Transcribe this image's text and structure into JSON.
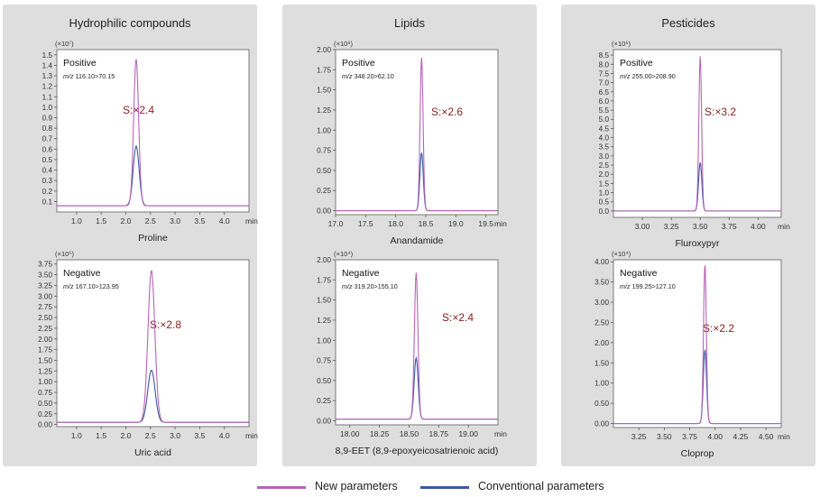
{
  "legend": {
    "new_label": "New parameters",
    "conv_label": "Conventional parameters",
    "new_color": "#b565b5",
    "conv_color": "#3a5aa6"
  },
  "panels": [
    {
      "title": "Hydrophilic compounds"
    },
    {
      "title": "Lipids"
    },
    {
      "title": "Pesticides"
    }
  ],
  "chart_data": [
    {
      "type": "line",
      "group": "Hydrophilic compounds",
      "scale_label": "(×10⁷)",
      "mode": "Positive",
      "mz_prefix": "m/z",
      "mz": "116.10>70.15",
      "compound": "Proline",
      "ratio_label": "S:×2.4",
      "xunit": "min",
      "xlim": [
        0.6,
        4.5
      ],
      "ylim": [
        0.0,
        1.55
      ],
      "xticks": [
        1.0,
        1.5,
        2.0,
        2.5,
        3.0,
        3.5,
        4.0
      ],
      "xtick_labels": [
        "1.0",
        "1.5",
        "2.0",
        "2.5",
        "3.0",
        "3.5",
        "4.0"
      ],
      "yticks": [
        0.1,
        0.2,
        0.3,
        0.4,
        0.5,
        0.6,
        0.7,
        0.8,
        0.9,
        1.0,
        1.1,
        1.2,
        1.3,
        1.4,
        1.5
      ],
      "ytick_labels": [
        "0.1",
        "0.2",
        "0.3",
        "0.4",
        "0.5",
        "0.6",
        "0.7",
        "0.8",
        "0.9",
        "1.0",
        "1.1",
        "1.2",
        "1.3",
        "1.4",
        "1.5"
      ],
      "baseline": 0.06,
      "series": [
        {
          "name": "New parameters",
          "peak_x": 2.21,
          "peak_y": 1.46,
          "width": 0.05
        },
        {
          "name": "Conventional parameters",
          "peak_x": 2.21,
          "peak_y": 0.63,
          "width": 0.06
        }
      ]
    },
    {
      "type": "line",
      "group": "Hydrophilic compounds",
      "scale_label": "(×10⁵)",
      "mode": "Negative",
      "mz_prefix": "m/z",
      "mz": "167.10>123.95",
      "compound": "Uric acid",
      "ratio_label": "S:×2.8",
      "xunit": "min",
      "xlim": [
        0.6,
        4.5
      ],
      "ylim": [
        -0.05,
        3.85
      ],
      "xticks": [
        1.0,
        1.5,
        2.0,
        2.5,
        3.0,
        3.5,
        4.0
      ],
      "xtick_labels": [
        "1.0",
        "1.5",
        "2.0",
        "2.5",
        "3.0",
        "3.5",
        "4.0"
      ],
      "yticks": [
        0.0,
        0.25,
        0.5,
        0.75,
        1.0,
        1.25,
        1.5,
        1.75,
        2.0,
        2.25,
        2.5,
        2.75,
        3.0,
        3.25,
        3.5,
        3.75
      ],
      "ytick_labels": [
        "0.00",
        "0.25",
        "0.50",
        "0.75",
        "1.00",
        "1.25",
        "1.50",
        "1.75",
        "2.00",
        "2.25",
        "2.50",
        "2.75",
        "3.00",
        "3.25",
        "3.50",
        "3.75"
      ],
      "baseline": 0.05,
      "series": [
        {
          "name": "New parameters",
          "peak_x": 2.52,
          "peak_y": 3.6,
          "width": 0.07
        },
        {
          "name": "Conventional parameters",
          "peak_x": 2.52,
          "peak_y": 1.27,
          "width": 0.075
        }
      ]
    },
    {
      "type": "line",
      "group": "Lipids",
      "scale_label": "(×10⁶)",
      "mode": "Positive",
      "mz_prefix": "m/z",
      "mz": "348.20>62.10",
      "compound": "Anandamide",
      "ratio_label": "S:×2.6",
      "xunit": "min",
      "xlim": [
        17.0,
        19.7
      ],
      "ylim": [
        -0.05,
        2.0
      ],
      "xticks": [
        17.0,
        17.5,
        18.0,
        18.5,
        19.0,
        19.5
      ],
      "xtick_labels": [
        "17.0",
        "17.5",
        "18.0",
        "18.5",
        "19.0",
        "19.5"
      ],
      "yticks": [
        0.0,
        0.25,
        0.5,
        0.75,
        1.0,
        1.25,
        1.5,
        1.75,
        2.0
      ],
      "ytick_labels": [
        "0.00",
        "0.25",
        "0.50",
        "0.75",
        "1.00",
        "1.25",
        "1.50",
        "1.75",
        "2.00"
      ],
      "baseline": 0.0,
      "series": [
        {
          "name": "New parameters",
          "peak_x": 18.43,
          "peak_y": 1.9,
          "width": 0.025
        },
        {
          "name": "Conventional parameters",
          "peak_x": 18.43,
          "peak_y": 0.72,
          "width": 0.028
        }
      ]
    },
    {
      "type": "line",
      "group": "Lipids",
      "scale_label": "(×10⁴)",
      "mode": "Negative",
      "mz_prefix": "m/z",
      "mz": "319.20>155.10",
      "compound": "8,9-EET (8,9-epoxyeicosatrienoic acid)",
      "ratio_label": "S:×2.4",
      "xunit": "min",
      "xlim": [
        17.88,
        19.25
      ],
      "ylim": [
        -0.05,
        2.0
      ],
      "xticks": [
        18.0,
        18.25,
        18.5,
        18.75,
        19.0
      ],
      "xtick_labels": [
        "18.00",
        "18.25",
        "18.50",
        "18.75",
        "19.00"
      ],
      "yticks": [
        0.0,
        0.25,
        0.5,
        0.75,
        1.0,
        1.25,
        1.5,
        1.75,
        2.0
      ],
      "ytick_labels": [
        "0.00",
        "0.25",
        "0.50",
        "0.75",
        "1.00",
        "1.25",
        "1.50",
        "1.75",
        "2.00"
      ],
      "baseline": 0.02,
      "series": [
        {
          "name": "New parameters",
          "peak_x": 18.56,
          "peak_y": 1.84,
          "width": 0.015
        },
        {
          "name": "Conventional parameters",
          "peak_x": 18.56,
          "peak_y": 0.78,
          "width": 0.017
        }
      ]
    },
    {
      "type": "line",
      "group": "Pesticides",
      "scale_label": "(×10⁵)",
      "mode": "Positive",
      "mz_prefix": "m/z",
      "mz": "255.00>208.90",
      "compound": "Fluroxypyr",
      "ratio_label": "S:×3.2",
      "xunit": "min",
      "xlim": [
        2.75,
        4.2
      ],
      "ylim": [
        -0.35,
        8.8
      ],
      "xticks": [
        3.0,
        3.25,
        3.5,
        3.75,
        4.0
      ],
      "xtick_labels": [
        "3.00",
        "3.25",
        "3.50",
        "3.75",
        "4.00"
      ],
      "yticks": [
        0.0,
        0.5,
        1.0,
        1.5,
        2.0,
        2.5,
        3.0,
        3.5,
        4.0,
        4.5,
        5.0,
        5.5,
        6.0,
        6.5,
        7.0,
        7.5,
        8.0,
        8.5
      ],
      "ytick_labels": [
        "0.0",
        "0.5",
        "1.0",
        "1.5",
        "2.0",
        "2.5",
        "3.0",
        "3.5",
        "4.0",
        "4.5",
        "5.0",
        "5.5",
        "6.0",
        "6.5",
        "7.0",
        "7.5",
        "8.0",
        "8.5"
      ],
      "baseline": 0.0,
      "series": [
        {
          "name": "New parameters",
          "peak_x": 3.5,
          "peak_y": 8.45,
          "width": 0.012
        },
        {
          "name": "Conventional parameters",
          "peak_x": 3.5,
          "peak_y": 2.65,
          "width": 0.014
        }
      ]
    },
    {
      "type": "line",
      "group": "Pesticides",
      "scale_label": "(×10⁴)",
      "mode": "Negative",
      "mz_prefix": "m/z",
      "mz": "199.25>127.10",
      "compound": "Cloprop",
      "ratio_label": "S:×2.2",
      "xunit": "min",
      "xlim": [
        3.0,
        4.65
      ],
      "ylim": [
        -0.1,
        4.05
      ],
      "xticks": [
        3.25,
        3.5,
        3.75,
        4.0,
        4.25,
        4.5
      ],
      "xtick_labels": [
        "3.25",
        "3.50",
        "3.75",
        "4.00",
        "4.25",
        "4.50"
      ],
      "yticks": [
        0.0,
        0.5,
        1.0,
        1.5,
        2.0,
        2.5,
        3.0,
        3.5,
        4.0
      ],
      "ytick_labels": [
        "0.00",
        "0.50",
        "1.00",
        "1.50",
        "2.00",
        "2.50",
        "3.00",
        "3.50",
        "4.00"
      ],
      "baseline": 0.0,
      "series": [
        {
          "name": "New parameters",
          "peak_x": 3.9,
          "peak_y": 3.95,
          "width": 0.014
        },
        {
          "name": "Conventional parameters",
          "peak_x": 3.9,
          "peak_y": 1.82,
          "width": 0.016
        }
      ]
    }
  ]
}
